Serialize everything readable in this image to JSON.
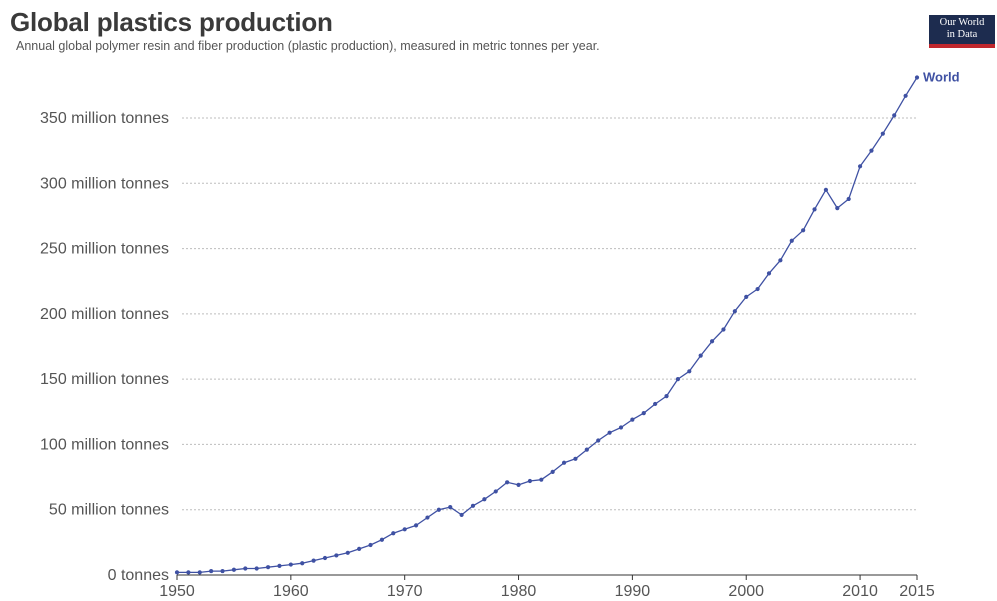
{
  "header": {
    "title": "Global plastics production",
    "subtitle": "Annual global polymer resin and fiber production (plastic production), measured in metric tonnes per year."
  },
  "logo": {
    "line1": "Our World",
    "line2": "in Data"
  },
  "colors": {
    "series": "#3f51a3",
    "grid": "#bdbdbd",
    "axis": "#333333",
    "logo_bg": "#1d2c4f",
    "logo_accent": "#c0272d"
  },
  "chart_data": {
    "type": "line",
    "title": "Global plastics production",
    "subtitle": "Annual global polymer resin and fiber production (plastic production), measured in metric tonnes per year.",
    "xlabel": "",
    "ylabel": "",
    "xlim": [
      1950,
      2015
    ],
    "ylim": [
      0,
      380
    ],
    "x_ticks": [
      1950,
      1960,
      1970,
      1980,
      1990,
      2000,
      2010,
      2015
    ],
    "y_ticks": [
      {
        "value": 0,
        "label": "0 tonnes"
      },
      {
        "value": 50,
        "label": "50 million tonnes"
      },
      {
        "value": 100,
        "label": "100 million tonnes"
      },
      {
        "value": 150,
        "label": "150 million tonnes"
      },
      {
        "value": 200,
        "label": "200 million tonnes"
      },
      {
        "value": 250,
        "label": "250 million tonnes"
      },
      {
        "value": 300,
        "label": "300 million tonnes"
      },
      {
        "value": 350,
        "label": "350 million tonnes"
      }
    ],
    "grid": "horizontal dotted",
    "legend": "inline label at line end",
    "x": [
      1950,
      1951,
      1952,
      1953,
      1954,
      1955,
      1956,
      1957,
      1958,
      1959,
      1960,
      1961,
      1962,
      1963,
      1964,
      1965,
      1966,
      1967,
      1968,
      1969,
      1970,
      1971,
      1972,
      1973,
      1974,
      1975,
      1976,
      1977,
      1978,
      1979,
      1980,
      1981,
      1982,
      1983,
      1984,
      1985,
      1986,
      1987,
      1988,
      1989,
      1990,
      1991,
      1992,
      1993,
      1994,
      1995,
      1996,
      1997,
      1998,
      1999,
      2000,
      2001,
      2002,
      2003,
      2004,
      2005,
      2006,
      2007,
      2008,
      2009,
      2010,
      2011,
      2012,
      2013,
      2014,
      2015
    ],
    "series": [
      {
        "name": "World",
        "values": [
          2,
          2,
          2,
          3,
          3,
          4,
          5,
          5,
          6,
          7,
          8,
          9,
          11,
          13,
          15,
          17,
          20,
          23,
          27,
          32,
          35,
          38,
          44,
          50,
          52,
          46,
          53,
          58,
          64,
          71,
          69,
          72,
          73,
          79,
          86,
          89,
          96,
          103,
          109,
          113,
          119,
          124,
          131,
          137,
          150,
          156,
          168,
          179,
          188,
          202,
          213,
          219,
          231,
          241,
          256,
          264,
          280,
          295,
          281,
          288,
          313,
          325,
          338,
          352,
          367,
          381
        ]
      }
    ]
  }
}
